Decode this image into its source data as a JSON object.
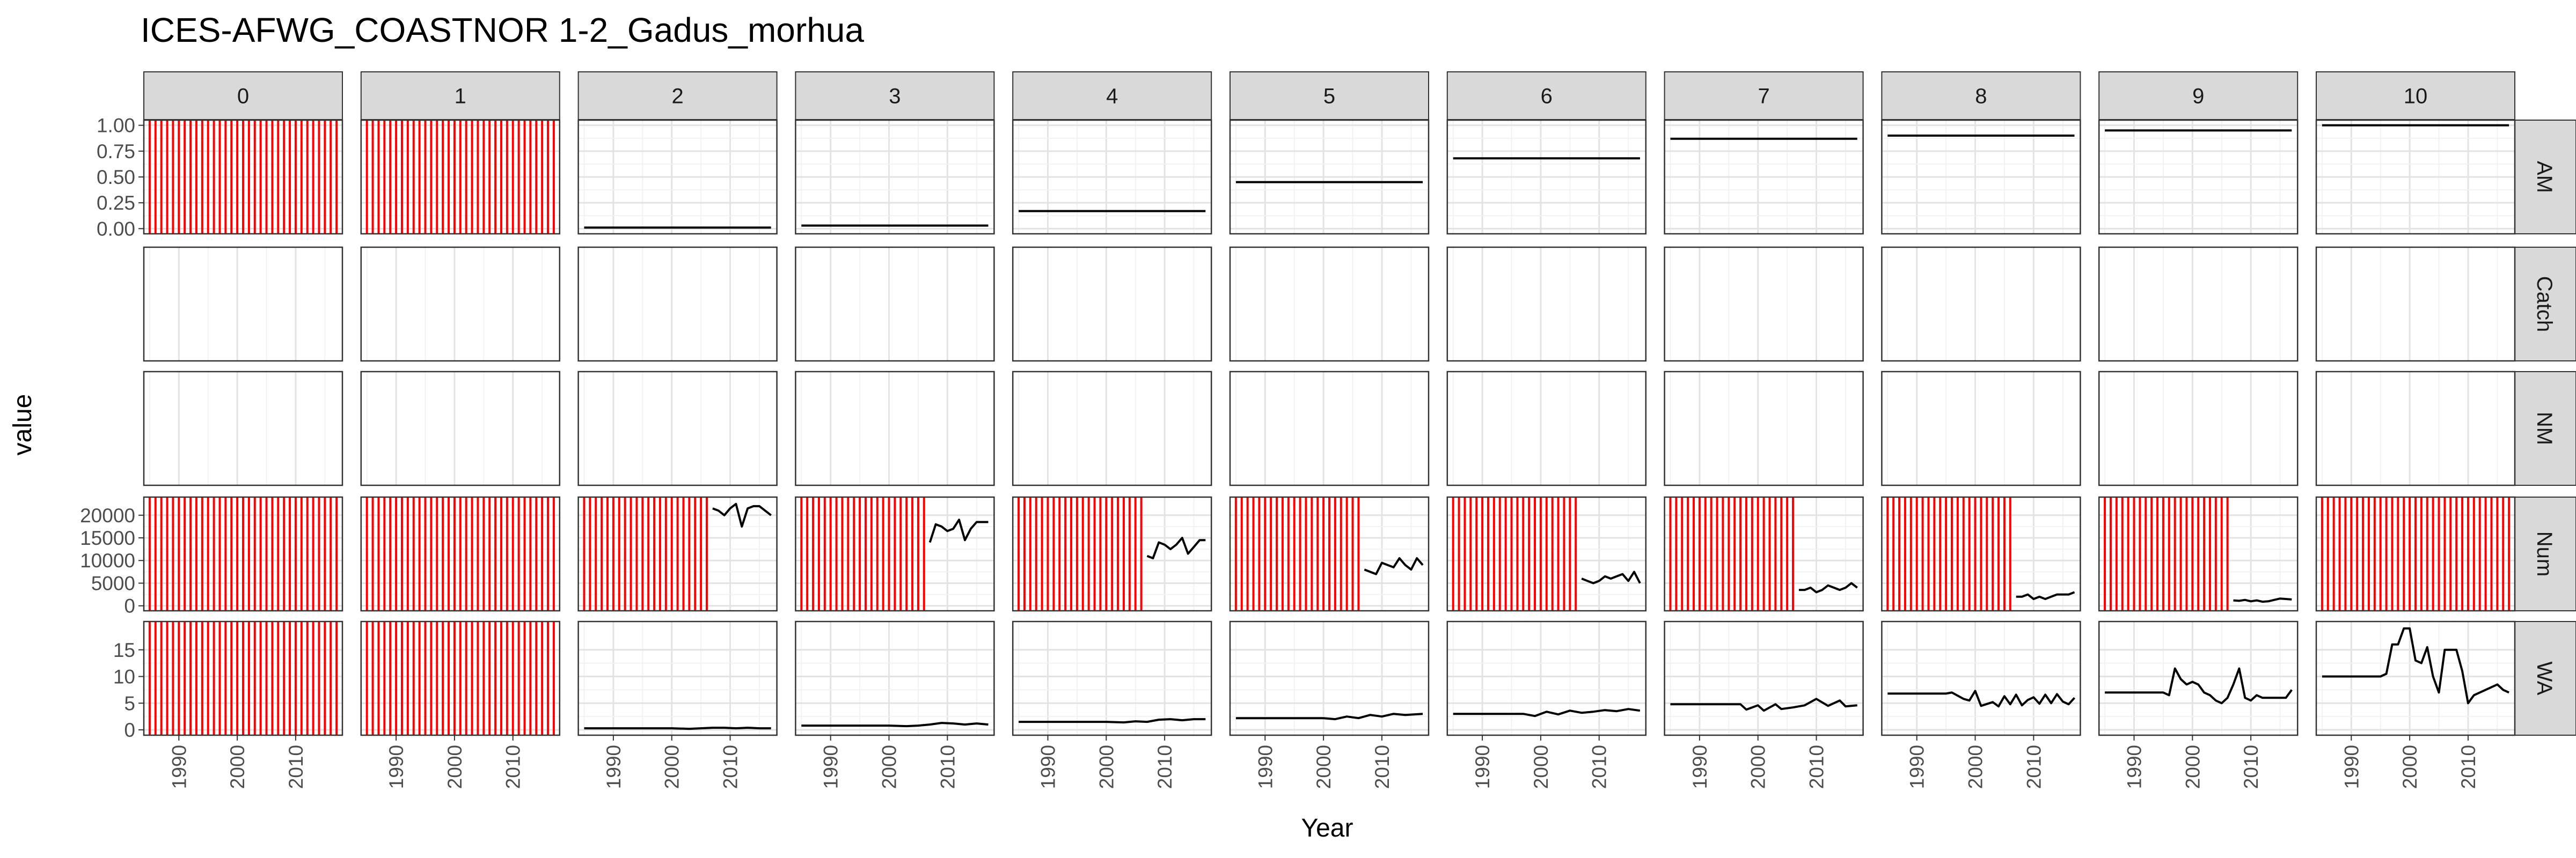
{
  "chart_data": {
    "type": "line",
    "title": "ICES-AFWG_COASTNOR 1-2_Gadus_morhua",
    "xlabel": "Year",
    "ylabel": "value",
    "facet_cols": [
      "0",
      "1",
      "2",
      "3",
      "4",
      "5",
      "6",
      "7",
      "8",
      "9",
      "10"
    ],
    "facet_rows": [
      "AM",
      "Catch",
      "NM",
      "Num",
      "WA"
    ],
    "x_range": [
      1984,
      2018
    ],
    "x_ticks": [
      1990,
      2000,
      2010
    ],
    "x_tick_labels": [
      "1990",
      "2000",
      "2010"
    ],
    "y_scales": {
      "AM": {
        "range": [
          -0.05,
          1.05
        ],
        "ticks": [
          0,
          0.25,
          0.5,
          0.75,
          1.0
        ],
        "tick_labels": [
          "0.00",
          "0.25",
          "0.50",
          "0.75",
          "1.00"
        ]
      },
      "Catch": {
        "range": [
          0,
          1
        ],
        "ticks": [],
        "tick_labels": []
      },
      "NM": {
        "range": [
          0,
          1
        ],
        "ticks": [],
        "tick_labels": []
      },
      "Num": {
        "range": [
          -1100,
          24000
        ],
        "ticks": [
          0,
          5000,
          10000,
          15000,
          20000
        ],
        "tick_labels": [
          "0",
          "5000",
          "10000",
          "15000",
          "20000"
        ]
      },
      "WA": {
        "range": [
          -1,
          20.3
        ],
        "ticks": [
          0,
          5,
          10,
          15
        ],
        "tick_labels": [
          "0",
          "5",
          "10",
          "15"
        ]
      }
    },
    "missing_data_color": "#ff0000",
    "line_color": "#000000",
    "grid": true,
    "missing_years": {
      "AM": {
        "0": [
          1985,
          2017
        ],
        "1": [
          1985,
          2017
        ]
      },
      "Num": {
        "0": [
          1985,
          2017
        ],
        "1": [
          1985,
          2017
        ],
        "2": [
          1985,
          2006
        ],
        "3": [
          1985,
          2006
        ],
        "4": [
          1985,
          2006
        ],
        "5": [
          1985,
          2006
        ],
        "6": [
          1985,
          2006
        ],
        "7": [
          1985,
          2006
        ],
        "8": [
          1985,
          2006
        ],
        "9": [
          1985,
          2006
        ],
        "10": [
          1985,
          2017
        ]
      },
      "WA": {
        "0": [
          1985,
          2017
        ],
        "1": [
          1985,
          2017
        ]
      }
    },
    "series": [
      {
        "row": "AM",
        "col": "2",
        "x": [
          1985,
          2017
        ],
        "y": [
          0.01,
          0.01
        ]
      },
      {
        "row": "AM",
        "col": "3",
        "x": [
          1985,
          2017
        ],
        "y": [
          0.03,
          0.03
        ]
      },
      {
        "row": "AM",
        "col": "4",
        "x": [
          1985,
          2017
        ],
        "y": [
          0.17,
          0.17
        ]
      },
      {
        "row": "AM",
        "col": "5",
        "x": [
          1985,
          2017
        ],
        "y": [
          0.45,
          0.45
        ]
      },
      {
        "row": "AM",
        "col": "6",
        "x": [
          1985,
          2017
        ],
        "y": [
          0.68,
          0.68
        ]
      },
      {
        "row": "AM",
        "col": "7",
        "x": [
          1985,
          2017
        ],
        "y": [
          0.87,
          0.87
        ]
      },
      {
        "row": "AM",
        "col": "8",
        "x": [
          1985,
          2017
        ],
        "y": [
          0.9,
          0.9
        ]
      },
      {
        "row": "AM",
        "col": "9",
        "x": [
          1985,
          2017
        ],
        "y": [
          0.95,
          0.95
        ]
      },
      {
        "row": "AM",
        "col": "10",
        "x": [
          1985,
          2017
        ],
        "y": [
          1.0,
          1.0
        ]
      },
      {
        "row": "Num",
        "col": "2",
        "x": [
          2007,
          2008,
          2009,
          2010,
          2011,
          2012,
          2013,
          2014,
          2015,
          2016,
          2017
        ],
        "y": [
          21500,
          21000,
          20000,
          21500,
          22500,
          17500,
          21500,
          22000,
          22000,
          21000,
          20000
        ]
      },
      {
        "row": "Num",
        "col": "3",
        "x": [
          2007,
          2008,
          2009,
          2010,
          2011,
          2012,
          2013,
          2014,
          2015,
          2016,
          2017
        ],
        "y": [
          14000,
          18000,
          17500,
          16500,
          17000,
          19000,
          14500,
          17000,
          18500,
          18500,
          18500
        ]
      },
      {
        "row": "Num",
        "col": "4",
        "x": [
          2007,
          2008,
          2009,
          2010,
          2011,
          2012,
          2013,
          2014,
          2015,
          2016,
          2017
        ],
        "y": [
          11000,
          10500,
          14000,
          13500,
          12500,
          13500,
          15000,
          11500,
          13000,
          14500,
          14500
        ]
      },
      {
        "row": "Num",
        "col": "5",
        "x": [
          2007,
          2008,
          2009,
          2010,
          2011,
          2012,
          2013,
          2014,
          2015,
          2016,
          2017
        ],
        "y": [
          8000,
          7500,
          7000,
          9500,
          9000,
          8500,
          10500,
          9000,
          8000,
          10500,
          9000
        ]
      },
      {
        "row": "Num",
        "col": "6",
        "x": [
          2007,
          2008,
          2009,
          2010,
          2011,
          2012,
          2013,
          2014,
          2015,
          2016,
          2017
        ],
        "y": [
          6000,
          5500,
          5000,
          5500,
          6500,
          6000,
          6500,
          7000,
          5500,
          7500,
          5000
        ]
      },
      {
        "row": "Num",
        "col": "7",
        "x": [
          2007,
          2008,
          2009,
          2010,
          2011,
          2012,
          2013,
          2014,
          2015,
          2016,
          2017
        ],
        "y": [
          3500,
          3500,
          4000,
          3000,
          3500,
          4500,
          4000,
          3500,
          4000,
          5000,
          4000
        ]
      },
      {
        "row": "Num",
        "col": "8",
        "x": [
          2007,
          2008,
          2009,
          2010,
          2011,
          2012,
          2013,
          2014,
          2015,
          2016,
          2017
        ],
        "y": [
          2000,
          2000,
          2500,
          1500,
          2000,
          1500,
          2000,
          2500,
          2500,
          2500,
          3000
        ]
      },
      {
        "row": "Num",
        "col": "9",
        "x": [
          2007,
          2008,
          2009,
          2010,
          2011,
          2012,
          2013,
          2014,
          2015,
          2016,
          2017
        ],
        "y": [
          1200,
          1100,
          1300,
          1000,
          1200,
          900,
          1000,
          1300,
          1600,
          1500,
          1400
        ]
      },
      {
        "row": "WA",
        "col": "2",
        "x": [
          1985,
          1990,
          1995,
          2000,
          2003,
          2005,
          2007,
          2009,
          2011,
          2013,
          2015,
          2017
        ],
        "y": [
          0.3,
          0.3,
          0.3,
          0.3,
          0.2,
          0.3,
          0.4,
          0.4,
          0.3,
          0.4,
          0.3,
          0.3
        ]
      },
      {
        "row": "WA",
        "col": "3",
        "x": [
          1985,
          1990,
          1995,
          2000,
          2003,
          2005,
          2007,
          2009,
          2011,
          2013,
          2015,
          2017
        ],
        "y": [
          0.8,
          0.8,
          0.8,
          0.8,
          0.7,
          0.8,
          1.0,
          1.3,
          1.2,
          1.0,
          1.2,
          1.0
        ]
      },
      {
        "row": "WA",
        "col": "4",
        "x": [
          1985,
          1990,
          1995,
          2000,
          2003,
          2005,
          2007,
          2009,
          2011,
          2013,
          2015,
          2017
        ],
        "y": [
          1.5,
          1.5,
          1.5,
          1.5,
          1.4,
          1.6,
          1.5,
          1.9,
          2.0,
          1.8,
          2.0,
          2.0
        ]
      },
      {
        "row": "WA",
        "col": "5",
        "x": [
          1985,
          1990,
          1995,
          2000,
          2002,
          2004,
          2006,
          2008,
          2010,
          2012,
          2014,
          2017
        ],
        "y": [
          2.2,
          2.2,
          2.2,
          2.2,
          2.0,
          2.5,
          2.2,
          2.8,
          2.5,
          3.0,
          2.8,
          3.0
        ]
      },
      {
        "row": "WA",
        "col": "6",
        "x": [
          1985,
          1990,
          1995,
          1997,
          1999,
          2001,
          2003,
          2005,
          2007,
          2009,
          2011,
          2013,
          2015,
          2017
        ],
        "y": [
          3.0,
          3.0,
          3.0,
          3.0,
          2.6,
          3.4,
          2.9,
          3.6,
          3.2,
          3.4,
          3.7,
          3.5,
          3.9,
          3.6
        ]
      },
      {
        "row": "WA",
        "col": "7",
        "x": [
          1985,
          1990,
          1995,
          1997,
          1998,
          2000,
          2001,
          2003,
          2004,
          2006,
          2008,
          2010,
          2012,
          2014,
          2015,
          2017
        ],
        "y": [
          4.8,
          4.8,
          4.8,
          4.8,
          3.8,
          4.6,
          3.6,
          4.8,
          3.9,
          4.2,
          4.6,
          5.8,
          4.5,
          5.5,
          4.4,
          4.6
        ]
      },
      {
        "row": "WA",
        "col": "8",
        "x": [
          1985,
          1990,
          1995,
          1996,
          1998,
          1999,
          2000,
          2001,
          2003,
          2004,
          2005,
          2006,
          2007,
          2008,
          2009,
          2010,
          2011,
          2012,
          2013,
          2014,
          2015,
          2016,
          2017
        ],
        "y": [
          6.8,
          6.8,
          6.8,
          7.0,
          5.8,
          5.5,
          7.3,
          4.5,
          5.2,
          4.4,
          6.3,
          4.8,
          6.6,
          4.6,
          5.6,
          6.1,
          4.9,
          6.6,
          5.0,
          6.7,
          5.3,
          4.8,
          6.0
        ]
      },
      {
        "row": "WA",
        "col": "9",
        "x": [
          1985,
          1990,
          1995,
          1996,
          1997,
          1998,
          1999,
          2000,
          2001,
          2002,
          2003,
          2004,
          2005,
          2006,
          2007,
          2008,
          2009,
          2010,
          2011,
          2012,
          2013,
          2014,
          2015,
          2016,
          2017
        ],
        "y": [
          7.0,
          7.0,
          7.0,
          6.5,
          11.5,
          9.5,
          8.5,
          9.0,
          8.5,
          7.0,
          6.5,
          5.5,
          5.0,
          6.0,
          8.5,
          11.5,
          6.0,
          5.5,
          6.5,
          6.0,
          6.0,
          6.0,
          6.0,
          6.0,
          7.5
        ]
      },
      {
        "row": "WA",
        "col": "10",
        "x": [
          1985,
          1990,
          1995,
          1996,
          1997,
          1998,
          1999,
          2000,
          2001,
          2002,
          2003,
          2004,
          2005,
          2006,
          2007,
          2008,
          2009,
          2010,
          2011,
          2012,
          2013,
          2014,
          2015,
          2016,
          2017
        ],
        "y": [
          10.0,
          10.0,
          10.0,
          10.5,
          16.0,
          16.0,
          19.0,
          19.0,
          13.0,
          12.5,
          15.5,
          10.0,
          7.0,
          15.0,
          15.0,
          15.0,
          11.0,
          5.0,
          6.5,
          7.0,
          7.5,
          8.0,
          8.5,
          7.5,
          7.0
        ]
      }
    ]
  }
}
